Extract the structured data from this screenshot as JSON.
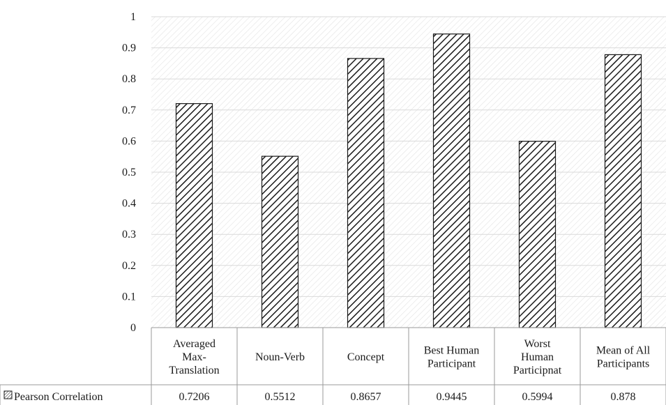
{
  "chart_data": {
    "type": "bar",
    "categories": [
      [
        "Averaged",
        "Max-",
        "Translation"
      ],
      [
        "Noun-Verb"
      ],
      [
        "Concept"
      ],
      [
        "Best Human",
        "Participant"
      ],
      [
        "Worst",
        "Human",
        "Participnat"
      ],
      [
        "Mean of All",
        "Participants"
      ]
    ],
    "series": [
      {
        "name": "Pearson Correlation",
        "values": [
          0.7206,
          0.5512,
          0.8657,
          0.9445,
          0.5994,
          0.878
        ],
        "value_labels": [
          "0.7206",
          "0.5512",
          "0.8657",
          "0.9445",
          "0.5994",
          "0.878"
        ]
      }
    ],
    "ylim": [
      0,
      1
    ],
    "yticks": [
      "0",
      "0.1",
      "0.2",
      "0.3",
      "0.4",
      "0.5",
      "0.6",
      "0.7",
      "0.8",
      "0.9",
      "1"
    ],
    "grid": true,
    "legend": "data-table-left",
    "data_table": true,
    "bar_fill": "diagonal-hatch",
    "colors": {
      "bar_stroke": "#1a1a1a",
      "grid": "#d9d9d9",
      "plot_hatch": "#e2e2e2",
      "text": "#1a1a1a"
    }
  }
}
